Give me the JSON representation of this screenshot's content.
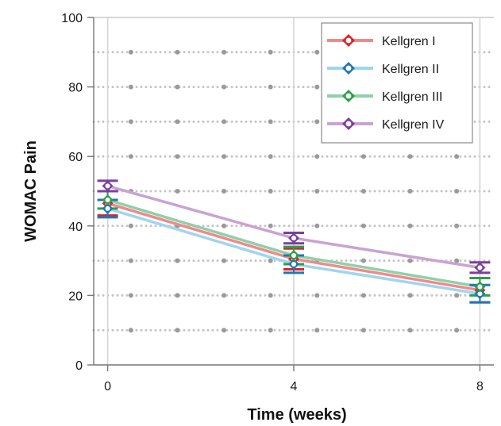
{
  "chart_data": {
    "type": "line",
    "title": "",
    "xlabel": "Time (weeks)",
    "ylabel": "WOMAC Pain",
    "x": [
      0,
      4,
      8
    ],
    "xticks": [
      "0",
      "4",
      "8"
    ],
    "yticks": [
      "0",
      "20",
      "40",
      "60",
      "80",
      "100"
    ],
    "xlim": [
      -0.3,
      8.3
    ],
    "ylim": [
      0,
      100
    ],
    "grid": true,
    "legend_position": "top-right",
    "series": [
      {
        "name": "Kellgren I",
        "color": "#f08a8a",
        "marker_color": "#e0232a",
        "values": [
          46.5,
          30.5,
          21.5
        ],
        "error": [
          3.5,
          3.0,
          3.5
        ]
      },
      {
        "name": "Kellgren II",
        "color": "#9fd6ee",
        "marker_color": "#1f78b4",
        "values": [
          45.0,
          29.0,
          20.5
        ],
        "error": [
          2.5,
          2.5,
          2.5
        ]
      },
      {
        "name": "Kellgren III",
        "color": "#8fd0a8",
        "marker_color": "#2ca048",
        "values": [
          47.5,
          31.5,
          22.5
        ],
        "error": [
          2.5,
          2.5,
          2.5
        ]
      },
      {
        "name": "Kellgren IV",
        "color": "#c9a3d3",
        "marker_color": "#7b3fa0",
        "values": [
          51.5,
          36.5,
          28.0
        ],
        "error": [
          1.5,
          1.5,
          1.5
        ]
      }
    ]
  }
}
